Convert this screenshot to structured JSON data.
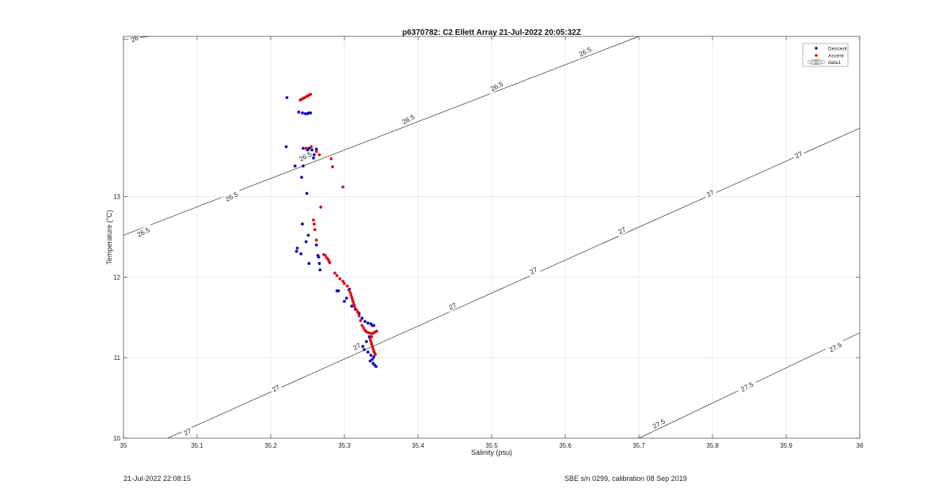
{
  "footer": {
    "timestamp": "21-Jul-2022 22:08:15",
    "calibration": "SBE s/n 0299, calibration 08 Sep 2019"
  },
  "chart_data": {
    "type": "scatter",
    "title": "p6370782: C2 Ellett Array 21-Jul-2022 20:05:32Z",
    "xlabel": "Salinity (psu)",
    "ylabel": "Temperature (°C)",
    "xlim": [
      35,
      36
    ],
    "ylim": [
      10,
      14.99
    ],
    "xticks": [
      35,
      35.1,
      35.2,
      35.3,
      35.4,
      35.5,
      35.6,
      35.7,
      35.8,
      35.9,
      36
    ],
    "xtick_labels": [
      "35",
      "35.1",
      "35.2",
      "35.3",
      "35.4",
      "35.5",
      "35.6",
      "35.7",
      "35.8",
      "35.9",
      "36"
    ],
    "yticks": [
      10,
      11,
      12,
      13
    ],
    "ytick_labels": [
      "10",
      "11",
      "12",
      "13"
    ],
    "grid": true,
    "legend_position": "top-right",
    "legend": [
      "Descent",
      "Ascent",
      "data1"
    ],
    "colors": {
      "descent": "#1010c0",
      "ascent": "#e01010",
      "contour": "#333333",
      "grid": "#e6e6e6"
    },
    "series": [
      {
        "name": "Descent",
        "x": [
          35.222,
          35.238,
          35.243,
          35.247,
          35.25,
          35.252,
          35.254,
          35.244,
          35.25,
          35.252,
          35.256,
          35.233,
          35.221,
          35.242,
          35.244,
          35.262,
          35.259,
          35.258,
          35.249,
          35.243,
          35.236,
          35.235,
          35.241,
          35.264,
          35.265,
          35.248,
          35.251,
          35.262,
          35.267,
          35.266,
          35.252,
          35.29,
          35.292,
          35.307,
          35.303,
          35.3,
          35.31,
          35.315,
          35.32,
          35.324,
          35.328,
          35.332,
          35.336,
          35.338,
          35.34,
          35.334,
          35.33,
          35.325,
          35.327,
          35.332,
          35.336,
          35.34,
          35.338,
          35.335,
          35.339,
          35.341,
          35.343
        ],
        "y": [
          14.23,
          14.05,
          14.04,
          14.03,
          14.03,
          14.04,
          14.04,
          13.6,
          13.58,
          13.6,
          13.58,
          13.38,
          13.62,
          13.24,
          13.38,
          13.59,
          13.52,
          13.48,
          13.04,
          12.66,
          12.36,
          12.32,
          12.29,
          12.27,
          12.25,
          12.44,
          12.52,
          12.4,
          12.09,
          12.17,
          12.17,
          11.83,
          11.83,
          11.85,
          11.74,
          11.7,
          11.64,
          11.6,
          11.55,
          11.49,
          11.45,
          11.43,
          11.42,
          11.4,
          11.4,
          11.26,
          11.2,
          11.14,
          11.1,
          11.07,
          11.03,
          11.01,
          10.98,
          10.96,
          10.93,
          10.91,
          10.89
        ]
      },
      {
        "name": "Ascent",
        "x": [
          35.24,
          35.242,
          35.244,
          35.246,
          35.248,
          35.25,
          35.252,
          35.254,
          35.248,
          35.255,
          35.262,
          35.266,
          35.282,
          35.284,
          35.298,
          35.268,
          35.258,
          35.259,
          35.26,
          35.262,
          35.272,
          35.274,
          35.276,
          35.278,
          35.279,
          35.28,
          35.287,
          35.29,
          35.294,
          35.298,
          35.3,
          35.304,
          35.306,
          35.308,
          35.309,
          35.31,
          35.311,
          35.312,
          35.313,
          35.314,
          35.316,
          35.318,
          35.32,
          35.322,
          35.324,
          35.326,
          35.328,
          35.33,
          35.333,
          35.336,
          35.338,
          35.34,
          35.342,
          35.344,
          35.337,
          35.335,
          35.336,
          35.337,
          35.338,
          35.339,
          35.34,
          35.341,
          35.342
        ],
        "y": [
          14.2,
          14.21,
          14.22,
          14.23,
          14.24,
          14.25,
          14.26,
          14.27,
          13.6,
          13.62,
          13.56,
          13.52,
          13.47,
          13.37,
          13.12,
          12.87,
          12.71,
          12.66,
          12.59,
          12.46,
          12.28,
          12.27,
          12.24,
          12.22,
          12.2,
          12.18,
          12.05,
          12.02,
          11.98,
          11.95,
          11.92,
          11.89,
          11.84,
          11.81,
          11.78,
          11.75,
          11.72,
          11.69,
          11.66,
          11.63,
          11.6,
          11.57,
          11.52,
          11.46,
          11.4,
          11.37,
          11.34,
          11.32,
          11.31,
          11.3,
          11.3,
          11.31,
          11.32,
          11.33,
          11.26,
          11.23,
          11.2,
          11.17,
          11.14,
          11.11,
          11.08,
          11.06,
          11.04
        ]
      }
    ],
    "contour_series": [
      {
        "name": "26",
        "x": [
          35.0,
          35.035
        ],
        "y": [
          14.95,
          14.99
        ]
      },
      {
        "name": "26.5",
        "x": [
          35.0,
          35.7
        ],
        "y": [
          12.52,
          14.99
        ]
      },
      {
        "name": "27",
        "x": [
          35.06,
          36.0
        ],
        "y": [
          10.0,
          13.85
        ]
      },
      {
        "name": "27.5",
        "x": [
          35.7,
          36.0
        ],
        "y": [
          10.0,
          11.31
        ]
      }
    ],
    "contour_labels": [
      {
        "text": "26",
        "x": 35.015,
        "y": 14.96,
        "angle": -28
      },
      {
        "text": "26.5",
        "x": 35.027,
        "y": 12.56,
        "angle": -28
      },
      {
        "text": "26.5",
        "x": 35.147,
        "y": 13.0,
        "angle": -28
      },
      {
        "text": "26.5",
        "x": 35.247,
        "y": 13.5,
        "angle": -28
      },
      {
        "text": "26.5",
        "x": 35.387,
        "y": 13.96,
        "angle": -28
      },
      {
        "text": "26.5",
        "x": 35.507,
        "y": 14.37,
        "angle": -28
      },
      {
        "text": "26.5",
        "x": 35.627,
        "y": 14.8,
        "angle": -28
      },
      {
        "text": "27",
        "x": 35.087,
        "y": 10.08,
        "angle": -28
      },
      {
        "text": "27",
        "x": 35.207,
        "y": 10.62,
        "angle": -28
      },
      {
        "text": "27",
        "x": 35.317,
        "y": 11.14,
        "angle": -28
      },
      {
        "text": "27",
        "x": 35.447,
        "y": 11.64,
        "angle": -28
      },
      {
        "text": "27",
        "x": 35.557,
        "y": 12.08,
        "angle": -28
      },
      {
        "text": "27",
        "x": 35.677,
        "y": 12.58,
        "angle": -28
      },
      {
        "text": "27",
        "x": 35.797,
        "y": 13.04,
        "angle": -28
      },
      {
        "text": "27",
        "x": 35.917,
        "y": 13.52,
        "angle": -28
      },
      {
        "text": "27.5",
        "x": 35.727,
        "y": 10.18,
        "angle": -28
      },
      {
        "text": "27.5",
        "x": 35.847,
        "y": 10.64,
        "angle": -28
      },
      {
        "text": "27.5",
        "x": 35.967,
        "y": 11.13,
        "angle": -28
      }
    ]
  }
}
